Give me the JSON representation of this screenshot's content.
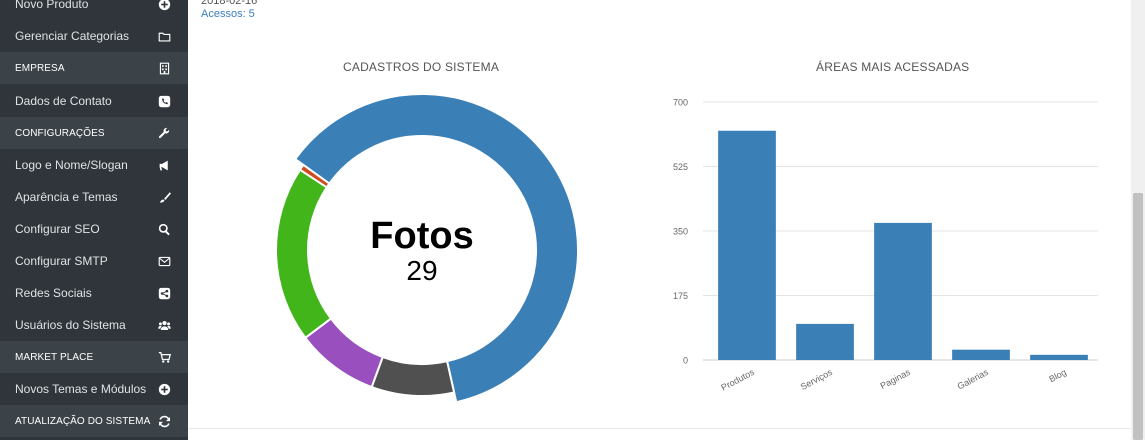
{
  "sidebar": {
    "items": [
      {
        "label": "Novo Produto",
        "type": "item",
        "icon": "plus-circle-icon"
      },
      {
        "label": "Gerenciar Categorias",
        "type": "item",
        "icon": "folder-icon"
      },
      {
        "label": "EMPRESA",
        "type": "section",
        "icon": "building-icon"
      },
      {
        "label": "Dados de Contato",
        "type": "item",
        "icon": "phone-square-icon"
      },
      {
        "label": "CONFIGURAÇÕES",
        "type": "section",
        "icon": "wrench-icon"
      },
      {
        "label": "Logo e Nome/Slogan",
        "type": "item",
        "icon": "bullhorn-icon"
      },
      {
        "label": "Aparência e Temas",
        "type": "item",
        "icon": "paintbrush-icon"
      },
      {
        "label": "Configurar SEO",
        "type": "item",
        "icon": "search-icon"
      },
      {
        "label": "Configurar SMTP",
        "type": "item",
        "icon": "envelope-icon"
      },
      {
        "label": "Redes Sociais",
        "type": "item",
        "icon": "share-square-icon"
      },
      {
        "label": "Usuários do Sistema",
        "type": "item",
        "icon": "users-icon"
      },
      {
        "label": "MARKET PLACE",
        "type": "section",
        "icon": "cart-icon"
      },
      {
        "label": "Novos Temas e Módulos",
        "type": "item",
        "icon": "plus-circle-icon"
      },
      {
        "label": "ATUALIZAÇÃO DO SISTEMA",
        "type": "section",
        "icon": "refresh-icon"
      }
    ]
  },
  "header": {
    "date": "2018-02-16",
    "access": "Acessos: 5"
  },
  "colors": {
    "sidebar_bg": "#2f353a",
    "section_bg": "#3b4349",
    "link": "#3a7fc0",
    "bar": "#3a7fb6"
  },
  "chart_data": [
    {
      "type": "pie",
      "title": "CADASTROS DO SISTEMA",
      "center_label": "Fotos",
      "center_value": "29",
      "highlighted": "Fotos",
      "slices": [
        {
          "value": 29,
          "color": "#3a7fb6"
        },
        {
          "value": 4.3,
          "color": "#505050"
        },
        {
          "value": 4.3,
          "color": "#9a4fbf"
        },
        {
          "value": 9.2,
          "color": "#42b51b"
        },
        {
          "value": 0.3,
          "color": "#d2491f"
        }
      ]
    },
    {
      "type": "bar",
      "title": "ÁREAS MAIS ACESSADAS",
      "categories": [
        "Produtos",
        "Serviços",
        "Paginas",
        "Galerias",
        "Blog"
      ],
      "values": [
        622,
        98,
        372,
        28,
        14
      ],
      "ylim": [
        0,
        700
      ],
      "yticks": [
        "0",
        "175",
        "350",
        "525",
        "700"
      ],
      "grid": true,
      "color": "#3a7fb6"
    }
  ]
}
